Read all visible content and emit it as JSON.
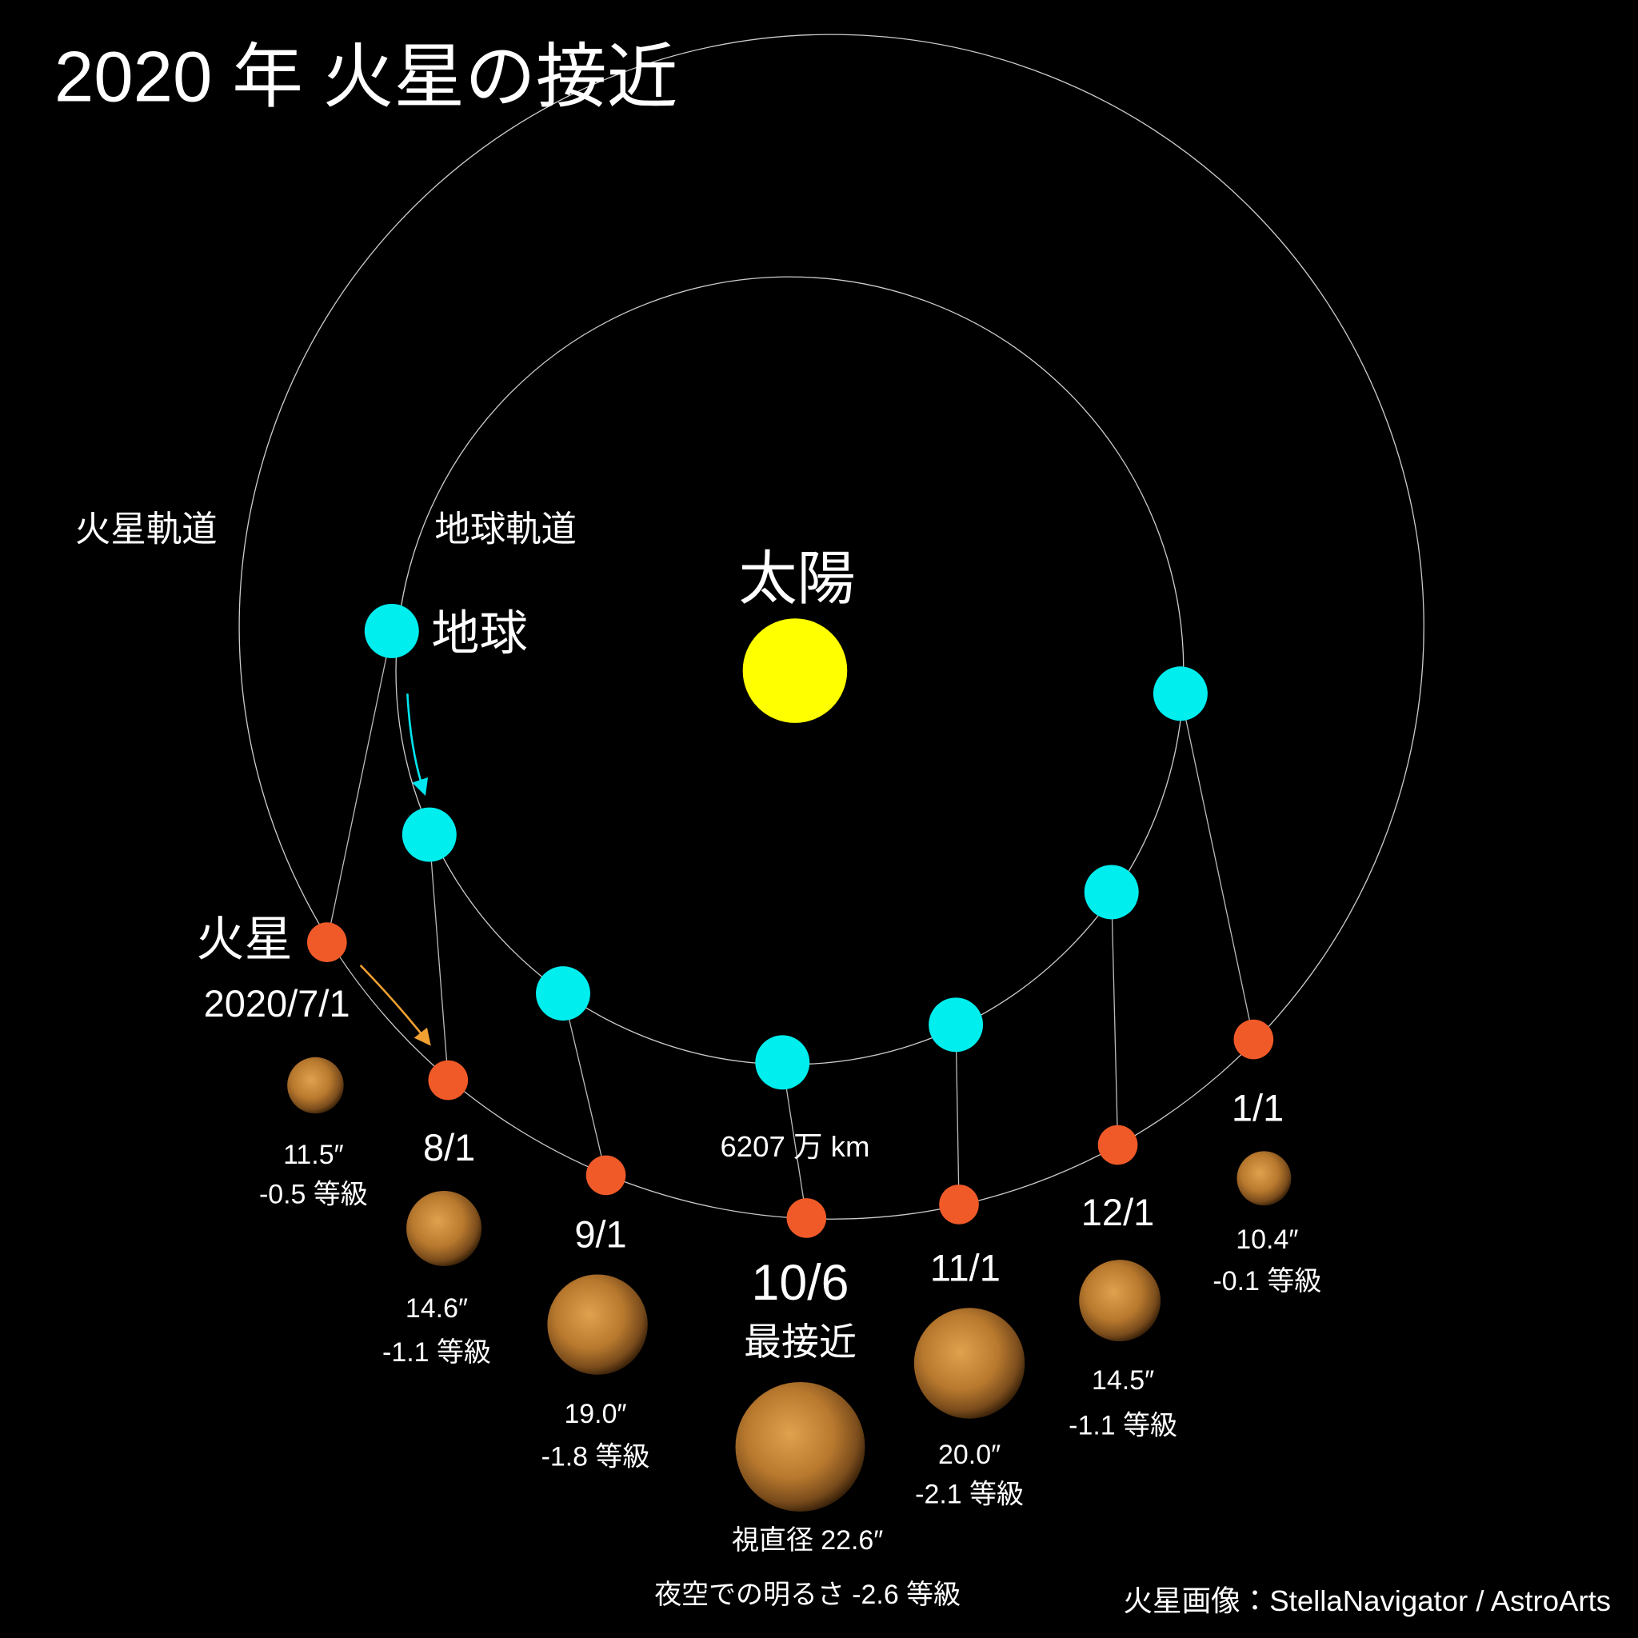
{
  "title": "2020 年 火星の接近",
  "sun_label": "太陽",
  "orbits": {
    "mars": "火星軌道",
    "earth": "地球軌道"
  },
  "earth_label": "地球",
  "mars_label": "火星",
  "distance": "6207 万 km",
  "views": [
    {
      "date": "2020/7/1",
      "diameter": "11.5″",
      "magnitude": "-0.5 等級"
    },
    {
      "date": "8/1",
      "diameter": "14.6″",
      "magnitude": "-1.1 等級"
    },
    {
      "date": "9/1",
      "diameter": "19.0″",
      "magnitude": "-1.8 等級"
    },
    {
      "date": "10/6",
      "note": "最接近",
      "diameter": "視直径  22.6″",
      "magnitude": "夜空での明るさ -2.6 等級"
    },
    {
      "date": "11/1",
      "diameter": "20.0″",
      "magnitude": "-2.1 等級"
    },
    {
      "date": "12/1",
      "diameter": "14.5″",
      "magnitude": "-1.1 等級"
    },
    {
      "date": "1/1",
      "diameter": "10.4″",
      "magnitude": "-0.1 等級"
    }
  ],
  "credit": "火星画像：StellaNavigator / AstroArts"
}
